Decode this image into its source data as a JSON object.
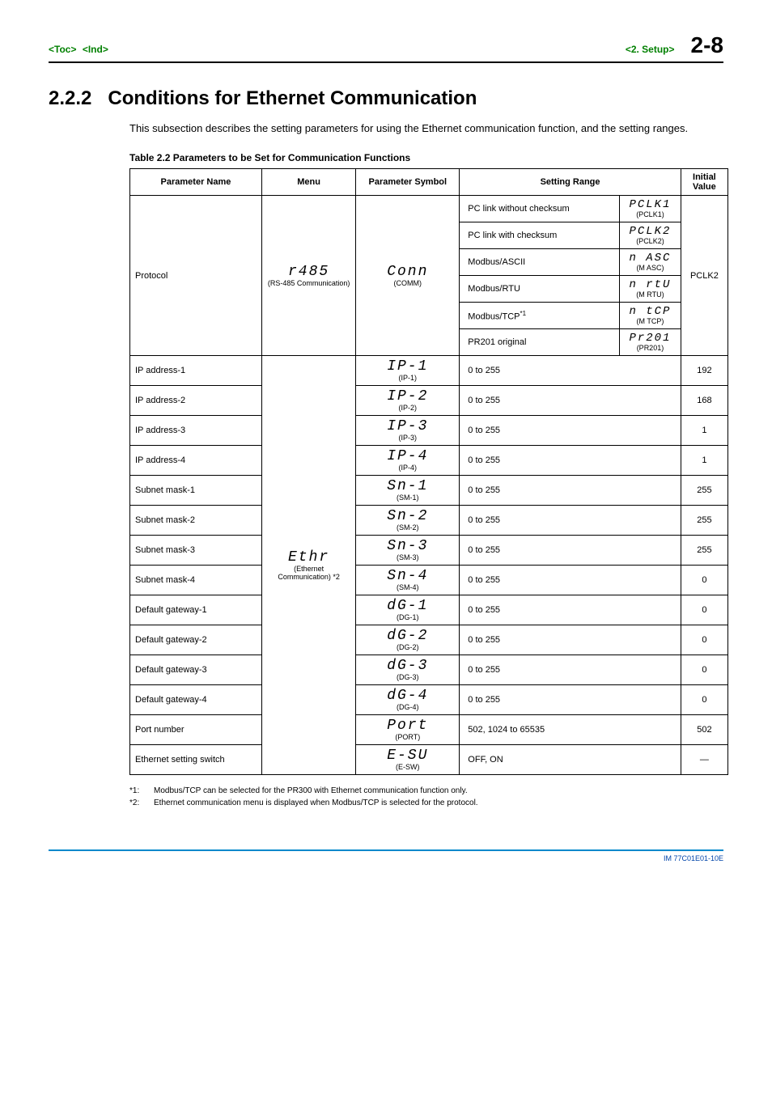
{
  "header": {
    "toc": "<Toc>",
    "ind": "<Ind>",
    "chapter": "<2.  Setup>",
    "page": "2-8"
  },
  "section": {
    "number": "2.2.2",
    "title": "Conditions for Ethernet Communication",
    "intro": "This subsection describes the setting parameters for using the Ethernet communication function, and the setting ranges.",
    "table_caption": "Table 2.2 Parameters to be Set for Communication Functions"
  },
  "columns": [
    "Parameter Name",
    "Menu",
    "Parameter Symbol",
    "Setting Range",
    "Initial Value"
  ],
  "menus": {
    "r485": {
      "seg": "r485",
      "sub": "(RS-485 Communication)"
    },
    "ethr": {
      "seg": "Ethr",
      "sub": "(Ethernet Communication) *2"
    }
  },
  "protocol": {
    "name": "Protocol",
    "symbol": {
      "seg": "Conn",
      "sub": "(COMM)"
    },
    "options": [
      {
        "label": "PC link without checksum",
        "seg": "PCLK1",
        "sub": "(PCLK1)"
      },
      {
        "label": "PC link with checksum",
        "seg": "PCLK2",
        "sub": "(PCLK2)"
      },
      {
        "label": "Modbus/ASCII",
        "seg": "n ASC",
        "sub": "(M ASC)"
      },
      {
        "label": "Modbus/RTU",
        "seg": "n rtU",
        "sub": "(M RTU)"
      },
      {
        "label_html": "Modbus/TCP<sup>*1</sup>",
        "seg": "n tCP",
        "sub": "(M TCP)"
      },
      {
        "label": "PR201 original",
        "seg": "Pr201",
        "sub": "(PR201)"
      }
    ],
    "initial": "PCLK2"
  },
  "ethernet_rows": [
    {
      "name": "IP address-1",
      "seg": "IP-1",
      "sub": "(IP-1)",
      "range": "0 to 255",
      "initial": "192"
    },
    {
      "name": "IP address-2",
      "seg": "IP-2",
      "sub": "(IP-2)",
      "range": "0 to 255",
      "initial": "168"
    },
    {
      "name": "IP address-3",
      "seg": "IP-3",
      "sub": "(IP-3)",
      "range": "0 to 255",
      "initial": "1"
    },
    {
      "name": "IP address-4",
      "seg": "IP-4",
      "sub": "(IP-4)",
      "range": "0 to 255",
      "initial": "1"
    },
    {
      "name": "Subnet mask-1",
      "seg": "Sn-1",
      "sub": "(SM-1)",
      "range": "0 to 255",
      "initial": "255"
    },
    {
      "name": "Subnet mask-2",
      "seg": "Sn-2",
      "sub": "(SM-2)",
      "range": "0 to 255",
      "initial": "255"
    },
    {
      "name": "Subnet mask-3",
      "seg": "Sn-3",
      "sub": "(SM-3)",
      "range": "0 to 255",
      "initial": "255"
    },
    {
      "name": "Subnet mask-4",
      "seg": "Sn-4",
      "sub": "(SM-4)",
      "range": "0 to 255",
      "initial": "0"
    },
    {
      "name": "Default gateway-1",
      "seg": "dG-1",
      "sub": "(DG-1)",
      "range": "0 to 255",
      "initial": "0"
    },
    {
      "name": "Default gateway-2",
      "seg": "dG-2",
      "sub": "(DG-2)",
      "range": "0 to 255",
      "initial": "0"
    },
    {
      "name": "Default gateway-3",
      "seg": "dG-3",
      "sub": "(DG-3)",
      "range": "0 to 255",
      "initial": "0"
    },
    {
      "name": "Default gateway-4",
      "seg": "dG-4",
      "sub": "(DG-4)",
      "range": "0 to 255",
      "initial": "0"
    },
    {
      "name": "Port number",
      "seg": "Port",
      "sub": "(PORT)",
      "range": "502, 1024 to 65535",
      "initial": "502"
    },
    {
      "name": "Ethernet setting switch",
      "seg": "E-SU",
      "sub": "(E-SW)",
      "range": "OFF, ON",
      "initial": "—"
    }
  ],
  "notes": [
    {
      "lbl": "*1:",
      "text": "Modbus/TCP can be selected for the PR300 with Ethernet communication function only."
    },
    {
      "lbl": "*2:",
      "text": "Ethernet communication menu is displayed when Modbus/TCP is selected for the protocol."
    }
  ],
  "footer": "IM 77C01E01-10E",
  "colors": {
    "green": "#008000",
    "blue": "#0088cc",
    "footer_text": "#0044aa"
  }
}
